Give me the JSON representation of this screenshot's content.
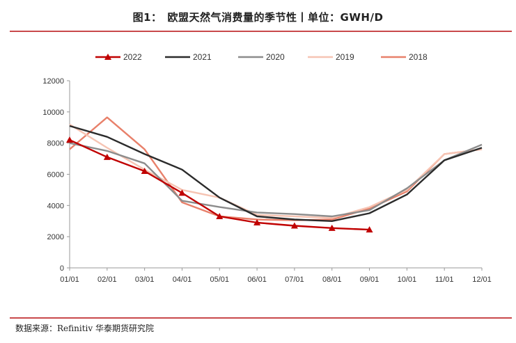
{
  "title": "图1：　欧盟天然气消费量的季节性丨单位：GWH/D",
  "source": "数据来源：Refinitiv  华泰期货研究院",
  "colors": {
    "rule": "#c9494b"
  },
  "chart_data": {
    "type": "line",
    "categories": [
      "01/01",
      "02/01",
      "03/01",
      "04/01",
      "05/01",
      "06/01",
      "07/01",
      "08/01",
      "09/01",
      "10/01",
      "11/01",
      "12/01"
    ],
    "ylim": [
      0,
      12000
    ],
    "yticks": [
      0,
      2000,
      4000,
      6000,
      8000,
      10000,
      12000
    ],
    "legend_position": "top",
    "series": [
      {
        "name": "2022",
        "color": "#c00000",
        "marker": "triangle",
        "values": [
          8200,
          7100,
          6200,
          4800,
          3300,
          2900,
          2700,
          2550,
          2450,
          null,
          null,
          null
        ]
      },
      {
        "name": "2021",
        "color": "#2b2b2b",
        "marker": "none",
        "values": [
          9100,
          8400,
          7300,
          6300,
          4500,
          3300,
          3100,
          3000,
          3500,
          4700,
          6900,
          7700
        ]
      },
      {
        "name": "2020",
        "color": "#8c8c8c",
        "marker": "none",
        "values": [
          8000,
          7500,
          6700,
          4300,
          3900,
          3550,
          3450,
          3300,
          3700,
          5100,
          6900,
          7900
        ]
      },
      {
        "name": "2019",
        "color": "#f6c4b3",
        "marker": "none",
        "values": [
          9200,
          7700,
          6300,
          5000,
          4500,
          3400,
          3300,
          3200,
          3900,
          5000,
          7300,
          7600
        ]
      },
      {
        "name": "2018",
        "color": "#e8806a",
        "marker": "none",
        "values": [
          7600,
          9650,
          7600,
          4200,
          3300,
          3100,
          3050,
          3100,
          3800,
          4900,
          7300,
          7600
        ]
      }
    ]
  }
}
